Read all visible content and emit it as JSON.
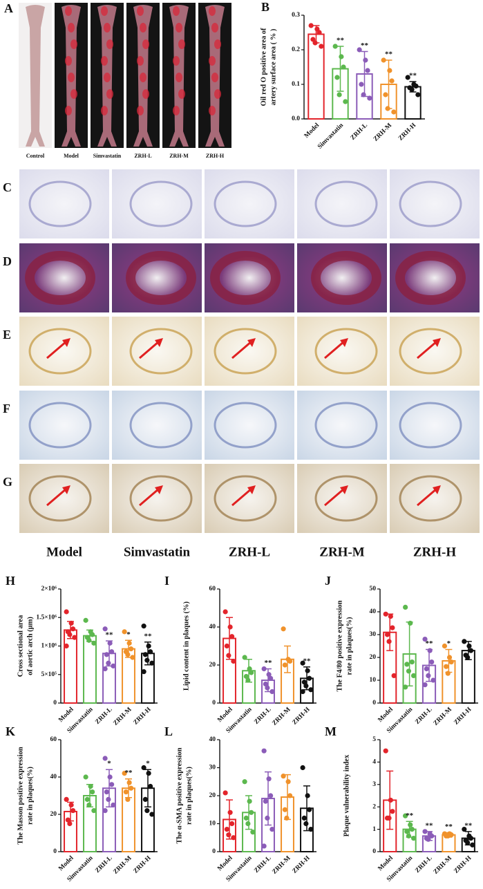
{
  "panel_a": {
    "letter": "A",
    "labels": [
      "Control",
      "Model",
      "Simvastatin",
      "ZRH-L",
      "ZRH-M",
      "ZRH-H"
    ]
  },
  "histology": {
    "rows": [
      "C",
      "D",
      "E",
      "F",
      "G"
    ],
    "groups": [
      "Model",
      "Simvastatin",
      "ZRH-L",
      "ZRH-M",
      "ZRH-H"
    ]
  },
  "chart_data": [
    {
      "type": "bar",
      "panel": "B",
      "ylabel": [
        "Oil red O positive area of",
        "artery surface area ( % )"
      ],
      "categories": [
        "Model",
        "Simvastatin",
        "ZRH-L",
        "ZRH-M",
        "ZRH-H"
      ],
      "colors": [
        "#e3242b",
        "#5cb84e",
        "#8b5cb8",
        "#f0922b",
        "#111111"
      ],
      "values": [
        0.245,
        0.145,
        0.13,
        0.1,
        0.093
      ],
      "errors": [
        0.025,
        0.065,
        0.065,
        0.07,
        0.015
      ],
      "points": [
        [
          0.27,
          0.26,
          0.25,
          0.23,
          0.22,
          0.21
        ],
        [
          0.21,
          0.18,
          0.15,
          0.12,
          0.07,
          0.05
        ],
        [
          0.2,
          0.17,
          0.14,
          0.1,
          0.07,
          0.06
        ],
        [
          0.17,
          0.14,
          0.11,
          0.07,
          0.03,
          0.02
        ],
        [
          0.12,
          0.1,
          0.095,
          0.09,
          0.085,
          0.07
        ]
      ],
      "significance": [
        null,
        "**",
        "**",
        "**",
        "**"
      ],
      "ylim": [
        0,
        0.3
      ],
      "yticks": [
        {
          "value": 0,
          "label": "0.0"
        },
        0.1,
        0.2,
        0.3
      ]
    },
    {
      "type": "bar",
      "panel": "H",
      "ylabel": [
        "Cross sectional area",
        "of aortic arch (μm)"
      ],
      "categories": [
        "Model",
        "Simvastatin",
        "ZRH-L",
        "ZRH-M",
        "ZRH-H"
      ],
      "colors": [
        "#e3242b",
        "#5cb84e",
        "#8b5cb8",
        "#f0922b",
        "#111111"
      ],
      "values": [
        1280000,
        1180000,
        870000,
        950000,
        870000
      ],
      "errors": [
        150000,
        100000,
        220000,
        150000,
        200000
      ],
      "points": [
        [
          1600000,
          1400000,
          1300000,
          1250000,
          1200000,
          1150000,
          1000000
        ],
        [
          1450000,
          1250000,
          1200000,
          1150000,
          1100000,
          1050000
        ],
        [
          1300000,
          1050000,
          900000,
          850000,
          700000,
          650000,
          600000
        ],
        [
          1250000,
          1050000,
          950000,
          900000,
          850000,
          800000
        ],
        [
          1350000,
          1000000,
          900000,
          850000,
          750000,
          700000,
          550000
        ]
      ],
      "significance": [
        null,
        null,
        "**",
        "*",
        "**"
      ],
      "ylim": [
        0,
        2000000
      ],
      "yticks": [
        0,
        {
          "value": 500000,
          "label": "5×10⁵"
        },
        {
          "value": 1000000,
          "label": "1×10⁶"
        },
        {
          "value": 1500000,
          "label": "1.5×10⁶"
        },
        {
          "value": 2000000,
          "label": "2×10⁶"
        }
      ]
    },
    {
      "type": "bar",
      "panel": "I",
      "ylabel": [
        "Lipid content in plaques (%)"
      ],
      "categories": [
        "Model",
        "Simvastatin",
        "ZRH-L",
        "ZRH-M",
        "ZRH-H"
      ],
      "colors": [
        "#e3242b",
        "#5cb84e",
        "#8b5cb8",
        "#f0922b",
        "#111111"
      ],
      "values": [
        34,
        17,
        12,
        23,
        13
      ],
      "errors": [
        11,
        6,
        6,
        7,
        6
      ],
      "points": [
        [
          48,
          40,
          35,
          30,
          25,
          22
        ],
        [
          24,
          18,
          16,
          14,
          12
        ],
        [
          18,
          15,
          13,
          10,
          8,
          6
        ],
        [
          39,
          23,
          22,
          20
        ],
        [
          21,
          17,
          13,
          11,
          9,
          7,
          6
        ]
      ],
      "significance": [
        null,
        null,
        "**",
        null,
        "**"
      ],
      "ylim": [
        0,
        60
      ],
      "yticks": [
        0,
        20,
        40,
        60
      ]
    },
    {
      "type": "bar",
      "panel": "J",
      "ylabel": [
        "The F4/80 positive expression",
        "rate in plaques(%)"
      ],
      "categories": [
        "Model",
        "Simvastatin",
        "ZRH-L",
        "ZRH-M",
        "ZRH-H"
      ],
      "colors": [
        "#e3242b",
        "#5cb84e",
        "#8b5cb8",
        "#f0922b",
        "#111111"
      ],
      "values": [
        31,
        21.5,
        16.5,
        18.5,
        23
      ],
      "errors": [
        8,
        14,
        7,
        5,
        4
      ],
      "points": [
        [
          39,
          38,
          33,
          30,
          27,
          12
        ],
        [
          42,
          35,
          18,
          17,
          14,
          12,
          7
        ],
        [
          28,
          23,
          18,
          15,
          12,
          10,
          8
        ],
        [
          25,
          20,
          18,
          16,
          13
        ],
        [
          27,
          25,
          23,
          21,
          20
        ]
      ],
      "significance": [
        null,
        null,
        "**",
        "*",
        null
      ],
      "ylim": [
        0,
        50
      ],
      "yticks": [
        0,
        10,
        20,
        30,
        40,
        50
      ]
    },
    {
      "type": "bar",
      "panel": "K",
      "ylabel": [
        "The Masson positive expression",
        "rate in plaques(%)"
      ],
      "categories": [
        "Model",
        "Simvastatin",
        "ZRH-L",
        "ZRH-M",
        "ZRH-H"
      ],
      "colors": [
        "#e3242b",
        "#5cb84e",
        "#8b5cb8",
        "#f0922b",
        "#111111"
      ],
      "values": [
        21.5,
        30,
        34,
        34,
        34
      ],
      "errors": [
        5,
        6,
        10,
        5,
        10
      ],
      "points": [
        [
          28,
          25,
          22,
          17,
          15
        ],
        [
          40,
          35,
          32,
          28,
          25,
          22
        ],
        [
          50,
          40,
          36,
          32,
          28,
          25,
          22
        ],
        [
          42,
          37,
          34,
          32,
          28
        ],
        [
          45,
          42,
          35,
          28,
          22,
          20
        ]
      ],
      "significance": [
        null,
        null,
        "*",
        "**",
        "*"
      ],
      "ylim": [
        0,
        60
      ],
      "yticks": [
        0,
        20,
        40,
        60
      ]
    },
    {
      "type": "bar",
      "panel": "L",
      "ylabel": [
        "The α-SMA positive expression",
        "rate in plaques(%)"
      ],
      "categories": [
        "Model",
        "Simvastatin",
        "ZRH-L",
        "ZRH-M",
        "ZRH-H"
      ],
      "colors": [
        "#e3242b",
        "#5cb84e",
        "#8b5cb8",
        "#f0922b",
        "#111111"
      ],
      "values": [
        11.5,
        14,
        19,
        19.5,
        15.5
      ],
      "errors": [
        7,
        6,
        9.5,
        8,
        8
      ],
      "points": [
        [
          21,
          14,
          10,
          8,
          6,
          5
        ],
        [
          25,
          18,
          14,
          12,
          10,
          7
        ],
        [
          36,
          26,
          20,
          18,
          12,
          8,
          2
        ],
        [
          27,
          25,
          20,
          15,
          12
        ],
        [
          30,
          20,
          15,
          12,
          10,
          8
        ]
      ],
      "significance": [
        null,
        null,
        null,
        null,
        null
      ],
      "ylim": [
        0,
        40
      ],
      "yticks": [
        0,
        10,
        20,
        30,
        40
      ]
    },
    {
      "type": "bar",
      "panel": "M",
      "ylabel": [
        "Plaque vulnerability index"
      ],
      "categories": [
        "Model",
        "Simvastatin",
        "ZRH-L",
        "ZRH-M",
        "ZRH-H"
      ],
      "colors": [
        "#e3242b",
        "#5cb84e",
        "#8b5cb8",
        "#f0922b",
        "#111111"
      ],
      "values": [
        2.3,
        1.0,
        0.7,
        0.75,
        0.6
      ],
      "errors": [
        1.3,
        0.35,
        0.2,
        0.1,
        0.3
      ],
      "points": [
        [
          4.5,
          2.3,
          1.8,
          1.5,
          1.5
        ],
        [
          1.6,
          1.2,
          1.0,
          0.9,
          0.7,
          0.6
        ],
        [
          0.9,
          0.8,
          0.7,
          0.6,
          0.55
        ],
        [
          0.8,
          0.8,
          0.75,
          0.7,
          0.7
        ],
        [
          1.0,
          0.7,
          0.6,
          0.5,
          0.4,
          0.3
        ]
      ],
      "significance": [
        null,
        "**",
        "**",
        "**",
        "**"
      ],
      "ylim": [
        0,
        5
      ],
      "yticks": [
        0,
        1,
        2,
        3,
        4,
        5
      ]
    }
  ]
}
